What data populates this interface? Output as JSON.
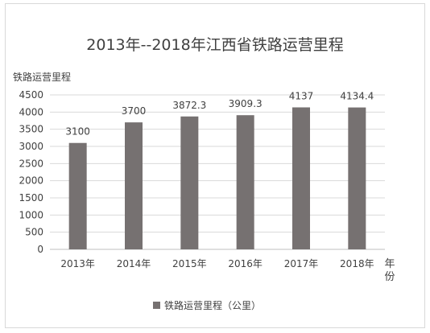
{
  "chart_data": {
    "type": "bar",
    "title": "2013年--2018年江西省铁路运营里程",
    "ylabel": "铁路运营里程",
    "xlabel": "年份",
    "categories": [
      "2013年",
      "2014年",
      "2015年",
      "2016年",
      "2017年",
      "2018年"
    ],
    "series": [
      {
        "name": "铁路运营里程（公里）",
        "values": [
          3100,
          3700,
          3872.3,
          3909.3,
          4137,
          4134.4
        ],
        "value_labels": [
          "3100",
          "3700",
          "3872.3",
          "3909.3",
          "4137",
          "4134.4"
        ]
      }
    ],
    "ylim": [
      0,
      4500
    ],
    "yticks": [
      "0",
      "500",
      "1000",
      "1500",
      "2000",
      "2500",
      "3000",
      "3500",
      "4000",
      "4500"
    ],
    "grid": true,
    "legend_position": "bottom",
    "colors": {
      "bar": "#767171",
      "grid": "#d9d9d9",
      "axis": "#bfbfbf",
      "text": "#404040"
    }
  }
}
